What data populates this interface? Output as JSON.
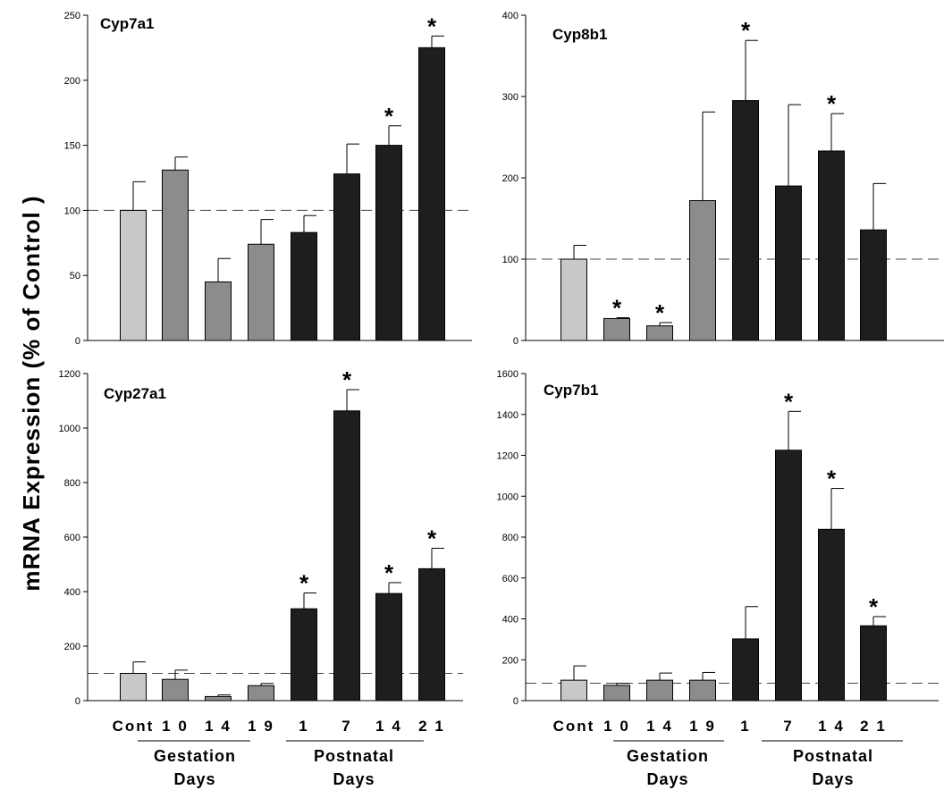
{
  "figure": {
    "ylabel": "mRNA Expression (% of Control )",
    "category_labels": [
      "Cont",
      "1 0",
      "1 4",
      "1 9",
      "1",
      "7",
      "1 4",
      "2 1"
    ],
    "groups": [
      {
        "line1": "Gestation",
        "line2": "Days"
      },
      {
        "line1": "Postnatal",
        "line2": "Days"
      }
    ],
    "bar_colors": [
      "#c8c8c8",
      "#8c8c8c",
      "#8c8c8c",
      "#8c8c8c",
      "#1e1e1e",
      "#1e1e1e",
      "#1e1e1e",
      "#1e1e1e"
    ],
    "significance_symbol": "*"
  },
  "chart_data": [
    {
      "type": "bar",
      "title": "Cyp7a1",
      "categories": [
        "Cont",
        "1 0",
        "1 4",
        "1 9",
        "1",
        "7",
        "1 4",
        "2 1"
      ],
      "values": [
        100,
        131,
        45,
        74,
        83,
        128,
        150,
        225
      ],
      "errors": [
        22,
        10,
        18,
        19,
        13,
        23,
        15,
        9
      ],
      "significant": [
        false,
        false,
        false,
        false,
        false,
        false,
        true,
        true
      ],
      "ylim": [
        0,
        250
      ],
      "yticks": [
        0,
        50,
        100,
        150,
        200,
        250
      ],
      "reference_line": 100
    },
    {
      "type": "bar",
      "title": "Cyp8b1",
      "categories": [
        "Cont",
        "1 0",
        "1 4",
        "1 9",
        "1",
        "7",
        "1 4",
        "2 1"
      ],
      "values": [
        100,
        27,
        18,
        172,
        295,
        190,
        233,
        136
      ],
      "errors": [
        17,
        1,
        4,
        109,
        74,
        100,
        46,
        57
      ],
      "significant": [
        false,
        true,
        true,
        false,
        true,
        false,
        true,
        false
      ],
      "ylim": [
        0,
        400
      ],
      "yticks": [
        0,
        100,
        200,
        300,
        400
      ],
      "reference_line": 100
    },
    {
      "type": "bar",
      "title": "Cyp27a1",
      "categories": [
        "Cont",
        "1 0",
        "1 4",
        "1 9",
        "1",
        "7",
        "1 4",
        "2 1"
      ],
      "values": [
        100,
        78,
        15,
        55,
        337,
        1063,
        393,
        484
      ],
      "errors": [
        42,
        34,
        6,
        8,
        58,
        78,
        40,
        75
      ],
      "significant": [
        false,
        false,
        false,
        false,
        true,
        true,
        true,
        true
      ],
      "ylim": [
        0,
        1200
      ],
      "yticks": [
        0,
        200,
        400,
        600,
        800,
        1000,
        1200
      ],
      "reference_line": 100
    },
    {
      "type": "bar",
      "title": "Cyp7b1",
      "categories": [
        "Cont",
        "1 0",
        "1 4",
        "1 9",
        "1",
        "7",
        "1 4",
        "2 1"
      ],
      "values": [
        100,
        75,
        100,
        100,
        302,
        1225,
        838,
        366
      ],
      "errors": [
        70,
        10,
        35,
        38,
        158,
        190,
        200,
        45
      ],
      "significant": [
        false,
        false,
        false,
        false,
        false,
        true,
        true,
        true
      ],
      "ylim": [
        0,
        1600
      ],
      "yticks": [
        0,
        200,
        400,
        600,
        800,
        1000,
        1200,
        1400,
        1600
      ],
      "reference_line": 85
    }
  ]
}
